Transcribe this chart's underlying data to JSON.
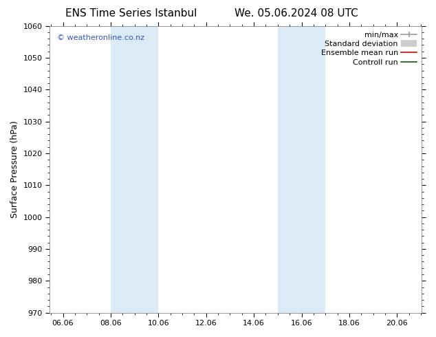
{
  "title_left": "ENS Time Series Istanbul",
  "title_right": "We. 05.06.2024 08 UTC",
  "ylabel": "Surface Pressure (hPa)",
  "ylim": [
    970,
    1060
  ],
  "yticks": [
    970,
    980,
    990,
    1000,
    1010,
    1020,
    1030,
    1040,
    1050,
    1060
  ],
  "xlim_start": 5.5,
  "xlim_end": 21.1,
  "xtick_labels": [
    "06.06",
    "08.06",
    "10.06",
    "12.06",
    "14.06",
    "16.06",
    "18.06",
    "20.06"
  ],
  "xtick_positions": [
    6.06,
    8.06,
    10.06,
    12.06,
    14.06,
    16.06,
    18.06,
    20.06
  ],
  "shaded_regions": [
    {
      "x_start": 8.06,
      "x_end": 10.06,
      "color": "#daeaf7"
    },
    {
      "x_start": 15.06,
      "x_end": 17.06,
      "color": "#daeaf7"
    }
  ],
  "watermark_text": "© weatheronline.co.nz",
  "watermark_color": "#3355bb",
  "bg_color": "#ffffff",
  "plot_bg_color": "#ffffff",
  "border_color": "#888888",
  "tick_color": "#000000",
  "font_family": "DejaVu Sans",
  "title_fontsize": 11,
  "tick_fontsize": 8,
  "ylabel_fontsize": 9,
  "legend_fontsize": 8
}
